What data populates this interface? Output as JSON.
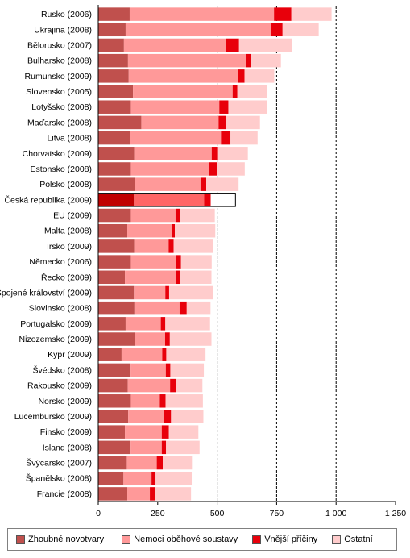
{
  "chart_data": {
    "type": "bar",
    "orientation": "horizontal",
    "stacked": true,
    "categories": [
      "Rusko (2006)",
      "Ukrajina (2008)",
      "Bělorusko (2007)",
      "Bulharsko (2008)",
      "Rumunsko (2009)",
      "Slovensko (2005)",
      "Lotyšsko (2008)",
      "Maďarsko (2008)",
      "Litva (2008)",
      "Chorvatsko (2009)",
      "Estonsko (2008)",
      "Polsko (2008)",
      "Česká republika (2009)",
      "EU (2009)",
      "Malta (2008)",
      "Irsko (2009)",
      "Německo (2006)",
      "Řecko (2009)",
      "Spojené království (2009)",
      "Slovinsko (2008)",
      "Portugalsko (2009)",
      "Nizozemsko (2009)",
      "Kypr (2009)",
      "Švédsko (2008)",
      "Rakousko (2009)",
      "Norsko (2009)",
      "Lucembursko (2009)",
      "Finsko (2009)",
      "Island (2008)",
      "Švýcarsko (2007)",
      "Španělsko (2008)",
      "Francie (2008)"
    ],
    "highlight_category": "Česká republika (2009)",
    "series": [
      {
        "name": "Zhoubné novotvary",
        "color": "#C0504D",
        "highlight_color": "#C00000",
        "values": [
          132,
          115,
          108,
          125,
          128,
          146,
          137,
          181,
          133,
          151,
          137,
          155,
          150,
          137,
          122,
          151,
          137,
          112,
          150,
          152,
          115,
          155,
          98,
          136,
          124,
          137,
          126,
          112,
          136,
          120,
          106,
          122
        ]
      },
      {
        "name": "Nemoci oběhové soustavy",
        "color": "#FF9999",
        "highlight_color": "#FF6666",
        "values": [
          607,
          612,
          429,
          497,
          461,
          419,
          372,
          325,
          383,
          326,
          329,
          275,
          295,
          188,
          187,
          145,
          191,
          214,
          132,
          190,
          148,
          126,
          171,
          148,
          178,
          122,
          150,
          155,
          131,
          126,
          118,
          95
        ]
      },
      {
        "name": "Vnější příčiny",
        "color": "#E8000B",
        "highlight_color": "#E8000B",
        "values": [
          73,
          48,
          55,
          20,
          26,
          20,
          38,
          30,
          40,
          27,
          32,
          24,
          28,
          19,
          13,
          21,
          20,
          18,
          16,
          30,
          19,
          20,
          17,
          19,
          24,
          24,
          30,
          30,
          18,
          25,
          17,
          23
        ]
      },
      {
        "name": "Ostatní",
        "color": "#FFCCCC",
        "highlight_color": "#FFFFFF",
        "values": [
          169,
          152,
          224,
          126,
          125,
          125,
          162,
          144,
          114,
          125,
          118,
          136,
          104,
          146,
          170,
          164,
          129,
          132,
          185,
          100,
          188,
          175,
          165,
          141,
          112,
          157,
          136,
          124,
          141,
          123,
          152,
          150
        ]
      }
    ],
    "xlim": [
      0,
      1250
    ],
    "xticks": [
      0,
      250,
      500,
      750,
      1000,
      1250
    ],
    "xtick_labels": [
      "0",
      "250",
      "500",
      "750",
      "1 000",
      "1 250"
    ],
    "reference_lines": [
      500,
      750,
      1000
    ],
    "xlabel": "",
    "ylabel": "",
    "title": "",
    "legend_position": "bottom"
  }
}
